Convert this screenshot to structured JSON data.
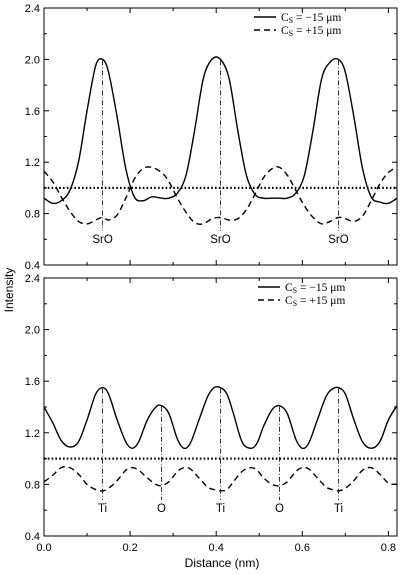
{
  "chart_data": {
    "type": "line",
    "ylabel": "Intensity",
    "xlabel": "Distance (nm)",
    "xlim": [
      0.0,
      0.82
    ],
    "xticks": [
      "0.0",
      "0.2",
      "0.4",
      "0.6",
      "0.8"
    ],
    "panels": [
      {
        "ylim": [
          0.4,
          2.4
        ],
        "yticks": [
          "0.4",
          "0.8",
          "1.2",
          "1.6",
          "2.0",
          "2.4"
        ],
        "legend": {
          "position": "top-right",
          "entries": [
            {
              "symbol": "C",
              "subscript": "S",
              "rest": " = −15 μm",
              "style": "solid"
            },
            {
              "symbol": "C",
              "subscript": "S",
              "rest": " = +15 μm",
              "style": "dashed"
            }
          ]
        },
        "reference_line": 1.0,
        "atom_labels": [
          {
            "text": "SrO",
            "x": 0.136
          },
          {
            "text": "SrO",
            "x": 0.41
          },
          {
            "text": "SrO",
            "x": 0.684
          }
        ],
        "series": [
          {
            "style": "solid",
            "x": [
              0.0,
              0.02,
              0.04,
              0.06,
              0.08,
              0.1,
              0.12,
              0.136,
              0.15,
              0.17,
              0.19,
              0.21,
              0.23,
              0.25,
              0.273,
              0.29,
              0.31,
              0.33,
              0.35,
              0.37,
              0.39,
              0.41,
              0.43,
              0.45,
              0.47,
              0.49,
              0.51,
              0.53,
              0.547,
              0.565,
              0.585,
              0.605,
              0.625,
              0.645,
              0.665,
              0.684,
              0.7,
              0.72,
              0.74,
              0.76,
              0.78,
              0.8,
              0.82
            ],
            "values": [
              0.92,
              0.88,
              0.9,
              0.98,
              1.2,
              1.6,
              1.95,
              2.0,
              1.9,
              1.55,
              1.15,
              0.93,
              0.9,
              0.93,
              0.92,
              0.92,
              0.96,
              1.1,
              1.45,
              1.85,
              2.0,
              2.0,
              1.85,
              1.45,
              1.1,
              0.95,
              0.92,
              0.92,
              0.92,
              0.92,
              0.96,
              1.1,
              1.45,
              1.85,
              1.98,
              2.0,
              1.9,
              1.55,
              1.15,
              0.93,
              0.89,
              0.88,
              0.92
            ]
          },
          {
            "style": "dashed",
            "x": [
              0.0,
              0.02,
              0.04,
              0.06,
              0.08,
              0.1,
              0.12,
              0.136,
              0.15,
              0.17,
              0.19,
              0.21,
              0.23,
              0.25,
              0.273,
              0.29,
              0.31,
              0.33,
              0.35,
              0.37,
              0.39,
              0.41,
              0.43,
              0.45,
              0.47,
              0.49,
              0.51,
              0.53,
              0.547,
              0.565,
              0.585,
              0.605,
              0.625,
              0.645,
              0.665,
              0.684,
              0.7,
              0.72,
              0.74,
              0.76,
              0.78,
              0.8,
              0.82
            ],
            "values": [
              1.13,
              1.05,
              0.93,
              0.82,
              0.74,
              0.72,
              0.75,
              0.77,
              0.75,
              0.79,
              0.92,
              1.07,
              1.15,
              1.16,
              1.12,
              1.05,
              0.92,
              0.81,
              0.73,
              0.72,
              0.76,
              0.77,
              0.75,
              0.76,
              0.83,
              0.95,
              1.08,
              1.15,
              1.16,
              1.1,
              0.98,
              0.86,
              0.77,
              0.72,
              0.74,
              0.77,
              0.76,
              0.74,
              0.78,
              0.9,
              1.03,
              1.12,
              1.16
            ]
          }
        ]
      },
      {
        "ylim": [
          0.4,
          2.4
        ],
        "yticks": [
          "0.4",
          "0.8",
          "1.2",
          "1.6",
          "2.0",
          "2.4"
        ],
        "legend": {
          "position": "top-right",
          "entries": [
            {
              "symbol": "C",
              "subscript": "S",
              "rest": " = −15 μm",
              "style": "solid"
            },
            {
              "symbol": "C",
              "subscript": "S",
              "rest": " = +15 μm",
              "style": "dashed"
            }
          ]
        },
        "reference_line": 1.0,
        "atom_labels": [
          {
            "text": "Ti",
            "x": 0.136
          },
          {
            "text": "O",
            "x": 0.273
          },
          {
            "text": "Ti",
            "x": 0.41
          },
          {
            "text": "O",
            "x": 0.547
          },
          {
            "text": "Ti",
            "x": 0.684
          }
        ],
        "series": [
          {
            "style": "solid",
            "x": [
              0.0,
              0.02,
              0.04,
              0.06,
              0.08,
              0.1,
              0.12,
              0.136,
              0.15,
              0.17,
              0.19,
              0.205,
              0.22,
              0.24,
              0.26,
              0.273,
              0.29,
              0.31,
              0.325,
              0.34,
              0.36,
              0.38,
              0.395,
              0.41,
              0.425,
              0.44,
              0.46,
              0.48,
              0.495,
              0.51,
              0.53,
              0.547,
              0.565,
              0.585,
              0.6,
              0.615,
              0.635,
              0.655,
              0.67,
              0.684,
              0.7,
              0.72,
              0.74,
              0.76,
              0.78,
              0.8,
              0.82
            ],
            "values": [
              1.4,
              1.28,
              1.14,
              1.09,
              1.13,
              1.3,
              1.5,
              1.55,
              1.5,
              1.3,
              1.13,
              1.08,
              1.13,
              1.3,
              1.4,
              1.41,
              1.35,
              1.15,
              1.08,
              1.12,
              1.3,
              1.48,
              1.55,
              1.55,
              1.5,
              1.35,
              1.13,
              1.08,
              1.12,
              1.25,
              1.38,
              1.41,
              1.35,
              1.15,
              1.08,
              1.12,
              1.3,
              1.48,
              1.54,
              1.55,
              1.5,
              1.3,
              1.13,
              1.08,
              1.13,
              1.3,
              1.41
            ]
          },
          {
            "style": "dashed",
            "x": [
              0.0,
              0.02,
              0.04,
              0.06,
              0.08,
              0.1,
              0.12,
              0.136,
              0.15,
              0.17,
              0.19,
              0.205,
              0.22,
              0.24,
              0.26,
              0.273,
              0.29,
              0.31,
              0.325,
              0.34,
              0.36,
              0.38,
              0.395,
              0.41,
              0.425,
              0.44,
              0.46,
              0.48,
              0.495,
              0.51,
              0.53,
              0.547,
              0.565,
              0.585,
              0.6,
              0.615,
              0.635,
              0.655,
              0.67,
              0.684,
              0.7,
              0.72,
              0.74,
              0.76,
              0.78,
              0.8,
              0.82
            ],
            "values": [
              0.82,
              0.87,
              0.93,
              0.93,
              0.88,
              0.8,
              0.76,
              0.75,
              0.77,
              0.83,
              0.91,
              0.93,
              0.91,
              0.85,
              0.8,
              0.79,
              0.82,
              0.9,
              0.93,
              0.92,
              0.85,
              0.78,
              0.76,
              0.75,
              0.76,
              0.82,
              0.9,
              0.93,
              0.91,
              0.85,
              0.8,
              0.79,
              0.82,
              0.9,
              0.93,
              0.92,
              0.85,
              0.78,
              0.76,
              0.75,
              0.77,
              0.83,
              0.91,
              0.93,
              0.88,
              0.81,
              0.8
            ]
          }
        ]
      }
    ]
  }
}
